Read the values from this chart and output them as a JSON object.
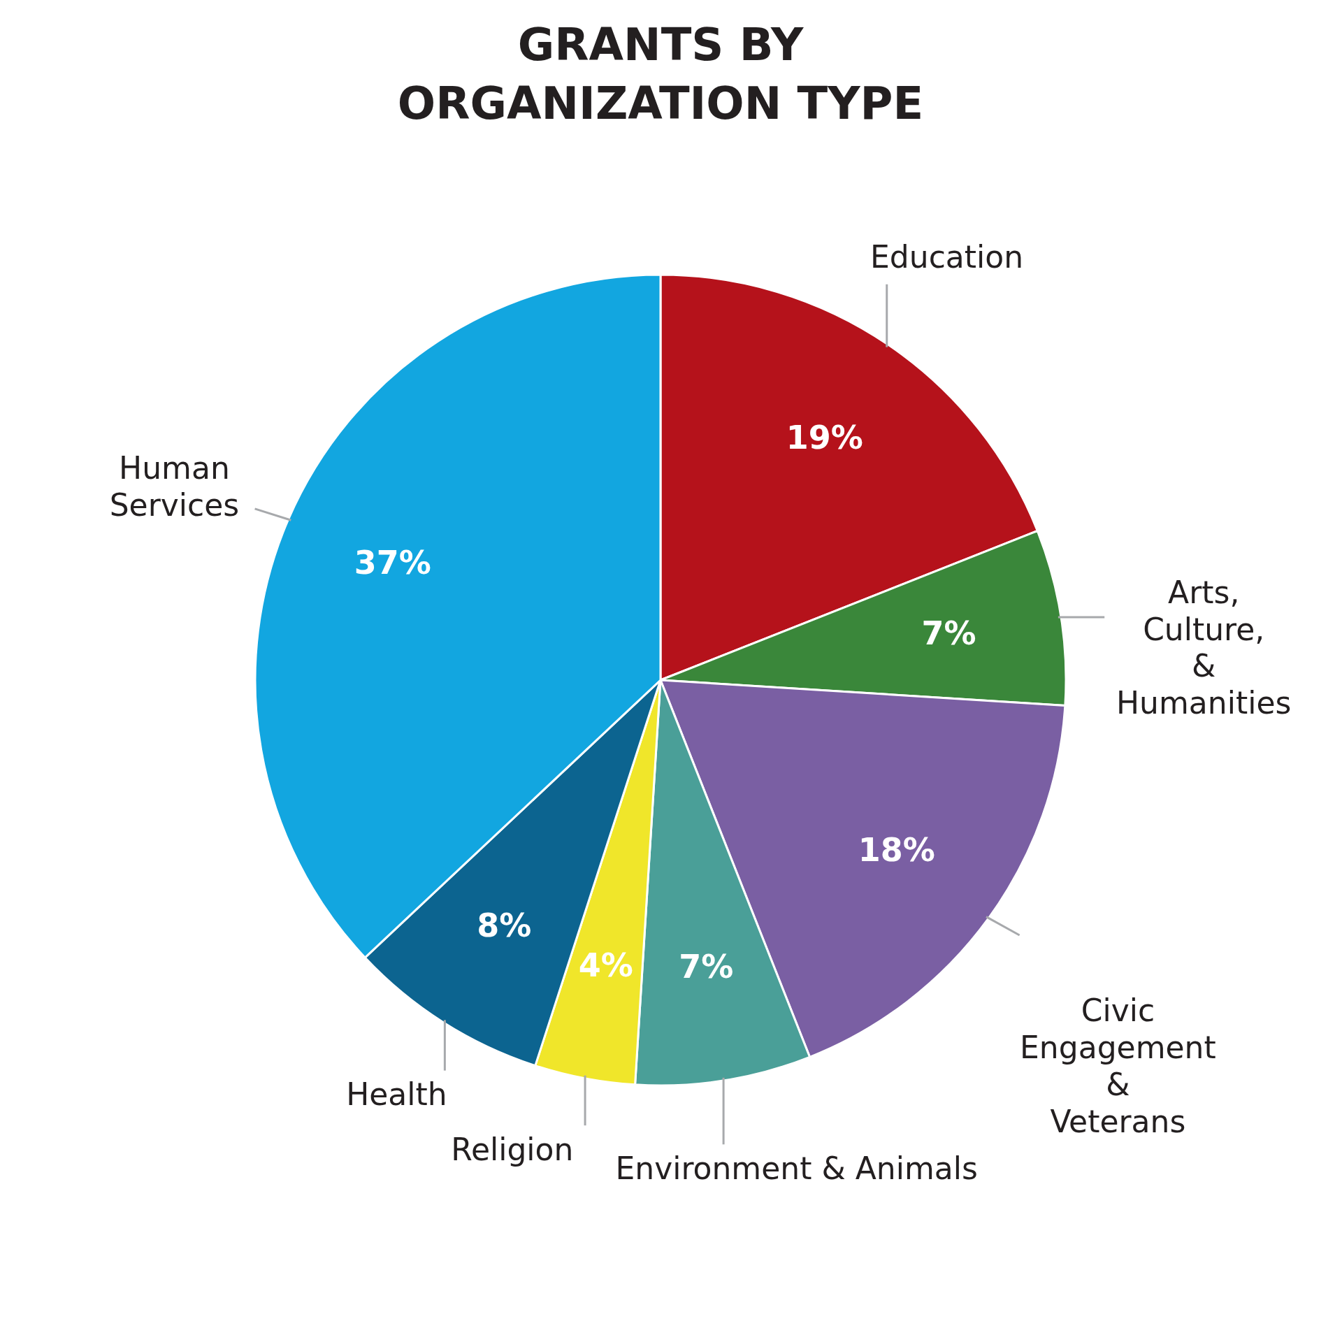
{
  "chart_data": {
    "type": "pie",
    "title": "GRANTS BY ORGANIZATION TYPE",
    "categories": [
      "Education",
      "Arts, Culture, & Humanities",
      "Civic Engagement & Veterans",
      "Environment & Animals",
      "Religion",
      "Health",
      "Human Services"
    ],
    "values": [
      19,
      7,
      18,
      7,
      4,
      8,
      37
    ],
    "value_labels": [
      "19%",
      "7%",
      "18%",
      "7%",
      "4%",
      "8%",
      "37%"
    ],
    "colors": [
      "#b5121b",
      "#3a873a",
      "#7a5fa3",
      "#4a9f98",
      "#f0e62a",
      "#0c6490",
      "#12a6e0"
    ],
    "legend": false
  }
}
